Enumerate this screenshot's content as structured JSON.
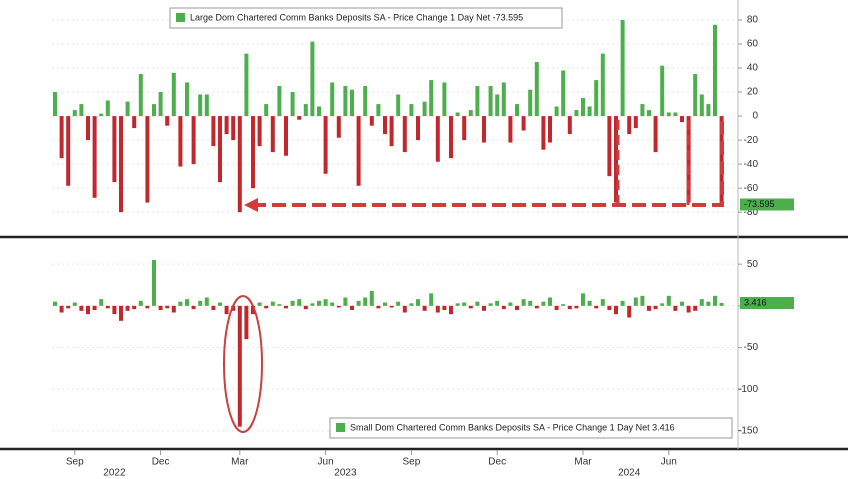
{
  "chart_data": [
    {
      "type": "bar",
      "series": [
        {
          "name": "Large Dom Chartered Comm Banks Deposits SA - Price Change 1 Day Net -73.595",
          "color": "#4cae4c",
          "negative_color": "#c0282d",
          "values": [
            20,
            -35,
            -58,
            5,
            10,
            -20,
            -68,
            2,
            13,
            -55,
            -80,
            12,
            -10,
            35,
            -72,
            10,
            20,
            -8,
            36,
            -42,
            28,
            -40,
            18,
            18,
            -25,
            -55,
            -15,
            -20,
            -80,
            52,
            -60,
            -25,
            10,
            -30,
            25,
            -33,
            20,
            -3,
            10,
            62,
            8,
            -48,
            28,
            -18,
            25,
            22,
            -58,
            25,
            -8,
            10,
            -15,
            -25,
            18,
            -30,
            10,
            -20,
            12,
            30,
            -38,
            28,
            -35,
            3,
            -20,
            5,
            25,
            -22,
            25,
            18,
            28,
            -22,
            10,
            -12,
            22,
            45,
            -28,
            -22,
            8,
            38,
            -15,
            5,
            15,
            8,
            30,
            52,
            -50,
            -72,
            80,
            -15,
            -10,
            10,
            5,
            -30,
            42,
            3,
            3,
            -5,
            -72,
            35,
            18,
            10,
            76,
            -73.595
          ]
        }
      ],
      "ylim": [
        -99,
        90
      ],
      "yticks": [
        -80,
        -60,
        -40,
        -20,
        0,
        20,
        40,
        60,
        80
      ]
    },
    {
      "type": "bar",
      "series": [
        {
          "name": "Small Dom Chartered Comm Banks Deposits SA - Price Change 1 Day Net 3.416",
          "color": "#4cae4c",
          "negative_color": "#c0282d",
          "values": [
            5,
            -8,
            -3,
            4,
            -6,
            -10,
            -5,
            8,
            -3,
            -10,
            -18,
            -6,
            -4,
            6,
            -3,
            55,
            -5,
            -3,
            -8,
            5,
            8,
            -4,
            6,
            10,
            -5,
            4,
            -10,
            -6,
            -145,
            -40,
            -10,
            4,
            -3,
            5,
            2,
            -3,
            6,
            8,
            -4,
            3,
            6,
            8,
            4,
            -2,
            10,
            -5,
            6,
            10,
            18,
            -3,
            4,
            -2,
            5,
            -8,
            3,
            8,
            -6,
            15,
            -8,
            -5,
            -10,
            3,
            4,
            -3,
            5,
            -6,
            3,
            6,
            -4,
            4,
            -5,
            8,
            6,
            -3,
            5,
            10,
            -5,
            2,
            -4,
            -3,
            15,
            6,
            -3,
            8,
            -5,
            -10,
            6,
            -14,
            10,
            12,
            -6,
            -4,
            3,
            12,
            -6,
            5,
            -8,
            -6,
            8,
            5,
            12,
            3.416
          ]
        }
      ],
      "ylim": [
        -173,
        79
      ],
      "yticks": [
        -150,
        -100,
        -50,
        0,
        50
      ],
      "categories": [
        null,
        null,
        null,
        "Sep",
        null,
        null,
        null,
        null,
        null,
        null,
        null,
        null,
        null,
        null,
        null,
        null,
        "Dec",
        null,
        null,
        null,
        null,
        null,
        null,
        null,
        null,
        null,
        null,
        null,
        "Mar",
        null,
        null,
        null,
        null,
        null,
        null,
        null,
        null,
        null,
        null,
        null,
        null,
        "Jun",
        null,
        null,
        null,
        null,
        null,
        null,
        null,
        null,
        null,
        null,
        null,
        null,
        "Sep",
        null,
        null,
        null,
        null,
        null,
        null,
        null,
        null,
        null,
        null,
        null,
        null,
        "Dec",
        null,
        null,
        null,
        null,
        null,
        null,
        null,
        null,
        null,
        null,
        null,
        null,
        "Mar",
        null,
        null,
        null,
        null,
        null,
        null,
        null,
        null,
        null,
        null,
        null,
        null,
        "Jun",
        null,
        null,
        null,
        null,
        null,
        null,
        null,
        null
      ],
      "year_ticks": [
        {
          "value": 9,
          "label": "2022"
        },
        {
          "value": 44,
          "label": "2023"
        },
        {
          "value": 87,
          "label": "2024"
        }
      ]
    }
  ]
}
